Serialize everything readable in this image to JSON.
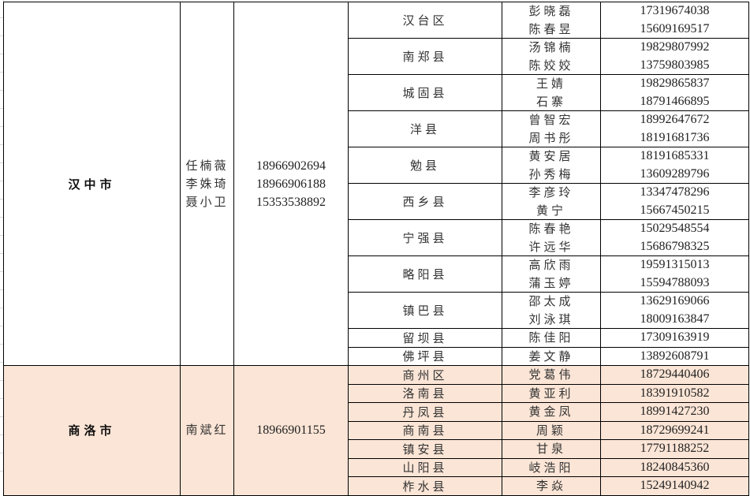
{
  "accent_colors": {
    "shangluo_fill": "#fbe5d6",
    "border": "#000000"
  },
  "regions": [
    {
      "city": "汉中市",
      "staff": [
        "任楠薇",
        "李姝琦",
        "聂小卫"
      ],
      "staff_phones": [
        "18966902694",
        "18966906188",
        "15353538892"
      ],
      "districts": [
        {
          "name": "汉台区",
          "contacts": [
            {
              "name": "彭晓磊",
              "phone": "17319674038"
            },
            {
              "name": "陈春昱",
              "phone": "15609169517"
            }
          ]
        },
        {
          "name": "南郑县",
          "contacts": [
            {
              "name": "汤锦楠",
              "phone": "19829807992"
            },
            {
              "name": "陈姣姣",
              "phone": "13759803985"
            }
          ]
        },
        {
          "name": "城固县",
          "contacts": [
            {
              "name": "王婧",
              "phone": "19829865837"
            },
            {
              "name": "石寨",
              "phone": "18791466895"
            }
          ]
        },
        {
          "name": "洋县",
          "contacts": [
            {
              "name": "曾智宏",
              "phone": "18992647672"
            },
            {
              "name": "周书彤",
              "phone": "18191681736"
            }
          ]
        },
        {
          "name": "勉县",
          "contacts": [
            {
              "name": "黄安居",
              "phone": "18191685331"
            },
            {
              "name": "孙秀梅",
              "phone": "13609289796"
            }
          ]
        },
        {
          "name": "西乡县",
          "contacts": [
            {
              "name": "李彦玲",
              "phone": "13347478296"
            },
            {
              "name": "黄宁",
              "phone": "15667450215"
            }
          ]
        },
        {
          "name": "宁强县",
          "contacts": [
            {
              "name": "陈春艳",
              "phone": "15029548554"
            },
            {
              "name": "许远华",
              "phone": "15686798325"
            }
          ]
        },
        {
          "name": "略阳县",
          "contacts": [
            {
              "name": "高欣雨",
              "phone": "19591315013"
            },
            {
              "name": "蒲玉婷",
              "phone": "15594788093"
            }
          ]
        },
        {
          "name": "镇巴县",
          "contacts": [
            {
              "name": "邵太成",
              "phone": "13629169066"
            },
            {
              "name": "刘泳琪",
              "phone": "18009163847"
            }
          ]
        },
        {
          "name": "留坝县",
          "contacts": [
            {
              "name": "陈佳阳",
              "phone": "17309163919"
            }
          ]
        },
        {
          "name": "佛坪县",
          "contacts": [
            {
              "name": "姜文静",
              "phone": "13892608791"
            }
          ]
        }
      ]
    },
    {
      "city": "商洛市",
      "staff": [
        "南斌红"
      ],
      "staff_phones": [
        "18966901155"
      ],
      "districts": [
        {
          "name": "商州区",
          "contacts": [
            {
              "name": "党葛伟",
              "phone": "18729440406"
            }
          ]
        },
        {
          "name": "洛南县",
          "contacts": [
            {
              "name": "黄亚利",
              "phone": "18391910582"
            }
          ]
        },
        {
          "name": "丹凤县",
          "contacts": [
            {
              "name": "黄金凤",
              "phone": "18991427230"
            }
          ]
        },
        {
          "name": "商南县",
          "contacts": [
            {
              "name": "周颖",
              "phone": "18729699241"
            }
          ]
        },
        {
          "name": "镇安县",
          "contacts": [
            {
              "name": "甘泉",
              "phone": "17791188252"
            }
          ]
        },
        {
          "name": "山阳县",
          "contacts": [
            {
              "name": "岐浩阳",
              "phone": "18240845360"
            }
          ]
        },
        {
          "name": "柞水县",
          "contacts": [
            {
              "name": "李焱",
              "phone": "15249140942"
            }
          ]
        }
      ]
    }
  ]
}
